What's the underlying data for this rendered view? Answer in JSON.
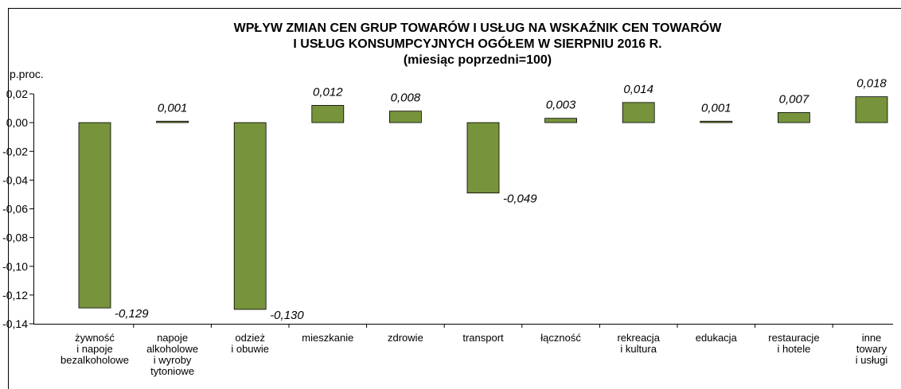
{
  "chart_data": {
    "type": "bar",
    "title": [
      "WPŁYW ZMIAN CEN  GRUP TOWARÓW I USŁUG NA WSKAŹNIK CEN TOWARÓW",
      "I USŁUG KONSUMPCYJNYCH OGÓŁEM W SIERPNIU 2016 R."
    ],
    "subtitle": "(miesiąc poprzedni=100)",
    "y_label": "p.proc.",
    "categories": [
      [
        "żywność",
        "i napoje",
        "bezalkoholowe"
      ],
      [
        "napoje",
        "alkoholowe",
        "i wyroby",
        "tytoniowe"
      ],
      [
        "odzież",
        "i obuwie"
      ],
      [
        "mieszkanie"
      ],
      [
        "zdrowie"
      ],
      [
        "transport"
      ],
      [
        "łączność"
      ],
      [
        "rekreacja",
        "i kultura"
      ],
      [
        "edukacja"
      ],
      [
        "restauracje",
        "i hotele"
      ],
      [
        "inne",
        "towary",
        "i usługi"
      ]
    ],
    "values": [
      -0.129,
      0.001,
      -0.13,
      0.012,
      0.008,
      -0.049,
      0.003,
      0.014,
      0.001,
      0.007,
      0.018
    ],
    "value_labels": [
      "-0,129",
      "0,001",
      "-0,130",
      "0,012",
      "0,008",
      "-0,049",
      "0,003",
      "0,014",
      "0,001",
      "0,007",
      "0,018"
    ],
    "color": "#77933c",
    "ylim": [
      -0.14,
      0.02
    ],
    "yticks": [
      {
        "value": 0.02,
        "label": "0,02"
      },
      {
        "value": 0,
        "label": "0,00"
      },
      {
        "value": -0.02,
        "label": "-0,02"
      },
      {
        "value": -0.04,
        "label": "-0,04"
      },
      {
        "value": -0.06,
        "label": "-0,06"
      },
      {
        "value": -0.08,
        "label": "-0,08"
      },
      {
        "value": -0.1,
        "label": "-0,10"
      },
      {
        "value": -0.12,
        "label": "-0,12"
      },
      {
        "value": -0.14,
        "label": "-0,14"
      }
    ],
    "grid": false
  }
}
